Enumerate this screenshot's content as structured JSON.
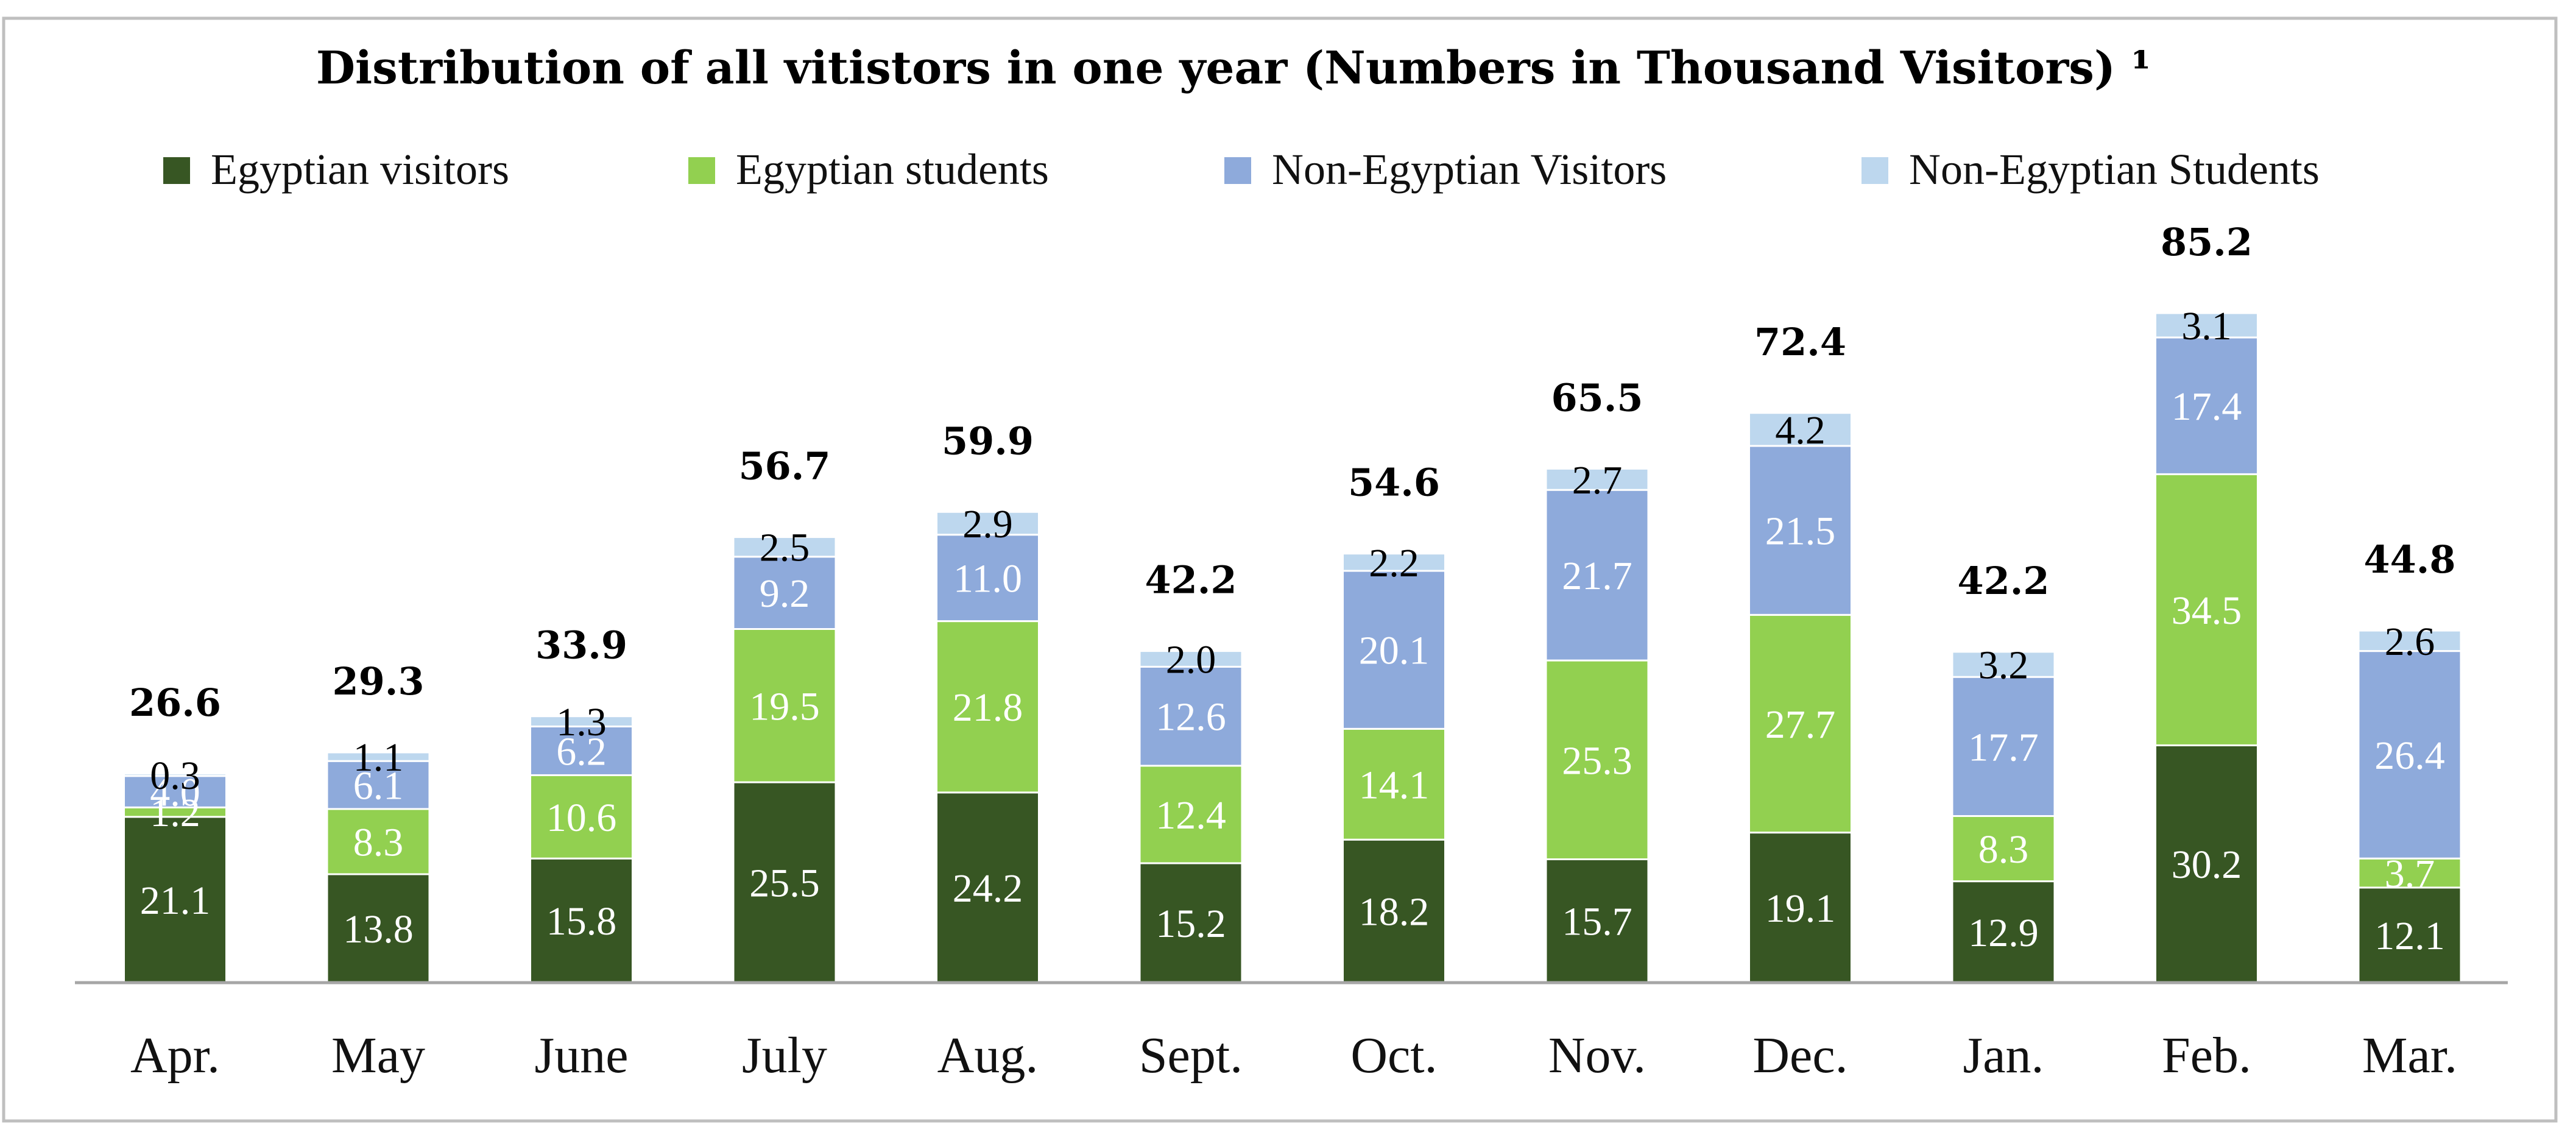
{
  "chart_data": {
    "type": "bar",
    "stacked": true,
    "title": "Distribution of all vitistors in one year (Numbers in Thousand Visitors) ¹",
    "legend_position": "top",
    "grid": false,
    "ylim": [
      0,
      100
    ],
    "categories": [
      "Apr.",
      "May",
      "June",
      "July",
      "Aug.",
      "Sept.",
      "Oct.",
      "Nov.",
      "Dec.",
      "Jan.",
      "Feb.",
      "Mar."
    ],
    "totals": [
      26.6,
      29.3,
      33.9,
      56.7,
      59.9,
      42.2,
      54.6,
      65.5,
      72.4,
      42.2,
      85.2,
      44.8
    ],
    "series": [
      {
        "name": "Egyptian visitors",
        "color": "#375623",
        "label_color": "#ffffff",
        "values": [
          21.1,
          13.8,
          15.8,
          25.5,
          24.2,
          15.2,
          18.2,
          15.7,
          19.1,
          12.9,
          30.2,
          12.1
        ]
      },
      {
        "name": "Egyptian students",
        "color": "#92d050",
        "label_color": "#ffffff",
        "values": [
          1.2,
          8.3,
          10.6,
          19.5,
          21.8,
          12.4,
          14.1,
          25.3,
          27.7,
          8.3,
          34.5,
          3.7
        ]
      },
      {
        "name": "Non-Egyptian  Visitors",
        "color": "#8eaadb",
        "label_color": "#ffffff",
        "values": [
          4.0,
          6.1,
          6.2,
          9.2,
          11.0,
          12.6,
          20.1,
          21.7,
          21.5,
          17.7,
          17.4,
          26.4
        ]
      },
      {
        "name": "Non-Egyptian  Students",
        "color": "#bdd7ee",
        "label_color": "#000000",
        "values": [
          0.3,
          1.1,
          1.3,
          2.5,
          2.9,
          2.0,
          2.2,
          2.7,
          4.2,
          3.2,
          3.1,
          2.6
        ]
      }
    ]
  }
}
